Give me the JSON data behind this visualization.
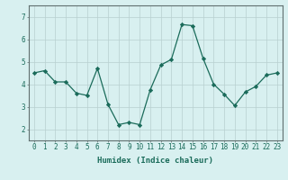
{
  "x": [
    0,
    1,
    2,
    3,
    4,
    5,
    6,
    7,
    8,
    9,
    10,
    11,
    12,
    13,
    14,
    15,
    16,
    17,
    18,
    19,
    20,
    21,
    22,
    23
  ],
  "y": [
    4.5,
    4.6,
    4.1,
    4.1,
    3.6,
    3.5,
    4.7,
    3.1,
    2.2,
    2.3,
    2.2,
    3.75,
    4.85,
    5.1,
    6.65,
    6.6,
    5.15,
    4.0,
    3.55,
    3.05,
    3.65,
    3.9,
    4.4,
    4.5
  ],
  "xlabel": "Humidex (Indice chaleur)",
  "xlim": [
    -0.5,
    23.5
  ],
  "ylim": [
    1.5,
    7.5
  ],
  "yticks": [
    2,
    3,
    4,
    5,
    6,
    7
  ],
  "xticks": [
    0,
    1,
    2,
    3,
    4,
    5,
    6,
    7,
    8,
    9,
    10,
    11,
    12,
    13,
    14,
    15,
    16,
    17,
    18,
    19,
    20,
    21,
    22,
    23
  ],
  "line_color": "#1a6b5a",
  "marker_color": "#1a6b5a",
  "bg_color": "#d8f0f0",
  "grid_color": "#b8d0d0",
  "axis_color": "#607070",
  "label_fontsize": 6.5,
  "tick_fontsize": 5.5
}
